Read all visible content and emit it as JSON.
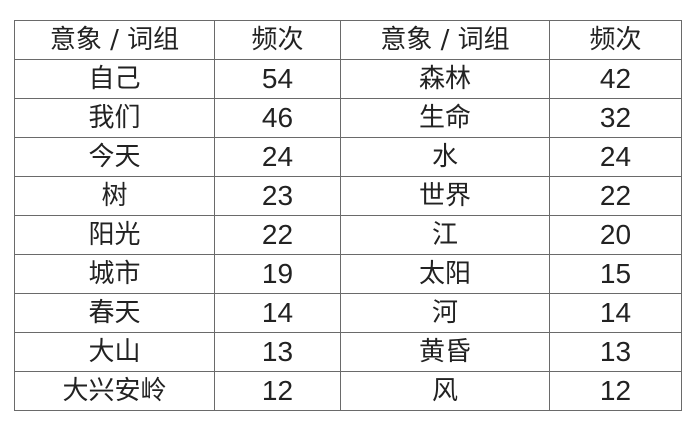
{
  "headers": [
    "意象 / 词组",
    "频次",
    "意象 / 词组",
    "频次"
  ],
  "rows": [
    [
      "自己",
      "54",
      "森林",
      "42"
    ],
    [
      "我们",
      "46",
      "生命",
      "32"
    ],
    [
      "今天",
      "24",
      "水",
      "24"
    ],
    [
      "树",
      "23",
      "世界",
      "22"
    ],
    [
      "阳光",
      "22",
      "江",
      "20"
    ],
    [
      "城市",
      "19",
      "太阳",
      "15"
    ],
    [
      "春天",
      "14",
      "河",
      "14"
    ],
    [
      "大山",
      "13",
      "黄昏",
      "13"
    ],
    [
      "大兴安岭",
      "12",
      "风",
      "12"
    ]
  ]
}
